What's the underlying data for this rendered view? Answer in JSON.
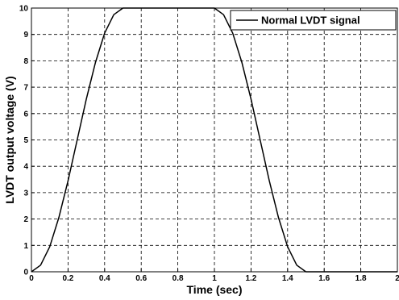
{
  "chart_data": {
    "type": "line",
    "xlabel": "Time (sec)",
    "ylabel": "LVDT output voltage (V)",
    "xlim": [
      0,
      2
    ],
    "ylim": [
      0,
      10
    ],
    "xticks": [
      0,
      0.2,
      0.4,
      0.6,
      0.8,
      1,
      1.2,
      1.4,
      1.6,
      1.8,
      2
    ],
    "xtick_labels": [
      "0",
      "0.2",
      "0.4",
      "0.6",
      "0.8",
      "1",
      "1.2",
      "1.4",
      "1.6",
      "1.8",
      "2"
    ],
    "yticks": [
      0,
      1,
      2,
      3,
      4,
      5,
      6,
      7,
      8,
      9,
      10
    ],
    "ytick_labels": [
      "0",
      "1",
      "2",
      "3",
      "4",
      "5",
      "6",
      "7",
      "8",
      "9",
      "10"
    ],
    "grid": true,
    "grid_style": "dashed",
    "legend_position": "top-right",
    "series": [
      {
        "name": "Normal LVDT signal",
        "color": "#000000",
        "x": [
          0,
          0.05,
          0.1,
          0.15,
          0.2,
          0.25,
          0.3,
          0.35,
          0.4,
          0.45,
          0.5,
          0.6,
          0.7,
          0.8,
          0.9,
          1.0,
          1.05,
          1.1,
          1.15,
          1.2,
          1.25,
          1.3,
          1.35,
          1.4,
          1.45,
          1.5,
          1.6,
          1.7,
          1.8,
          1.9,
          2.0
        ],
        "y": [
          0,
          0.25,
          0.95,
          2.06,
          3.45,
          5.0,
          6.55,
          7.94,
          9.05,
          9.75,
          10,
          10,
          10,
          10,
          10,
          10,
          9.75,
          9.05,
          7.94,
          6.55,
          5.0,
          3.45,
          2.06,
          0.95,
          0.25,
          0,
          0,
          0,
          0,
          0,
          0
        ]
      }
    ]
  }
}
